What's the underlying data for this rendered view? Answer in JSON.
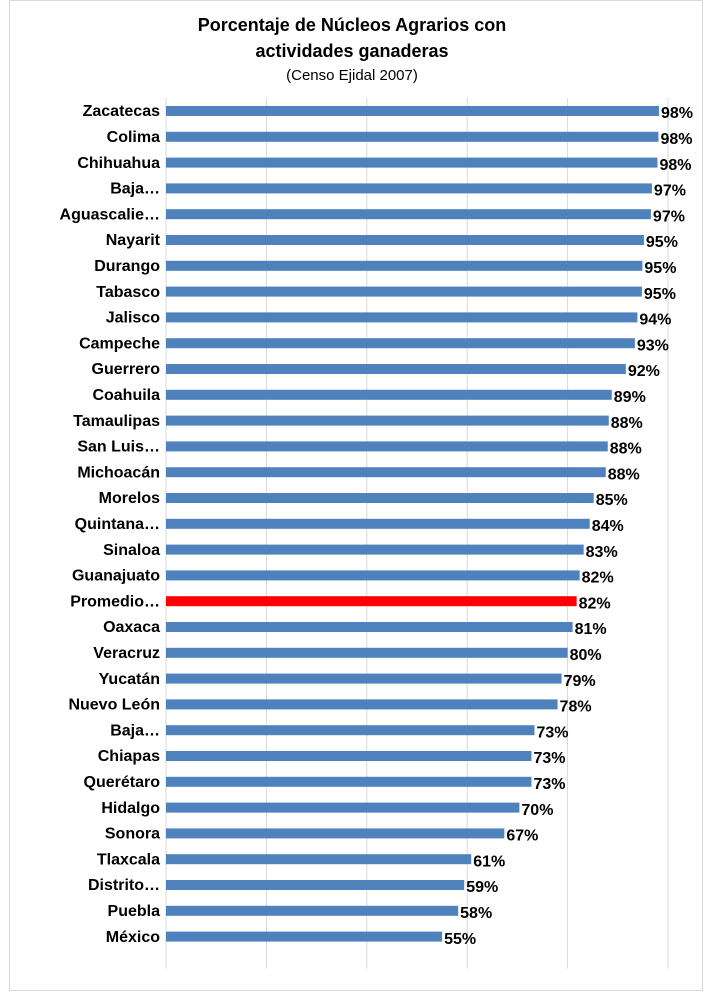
{
  "chart_data": {
    "type": "barh",
    "title": "Porcentaje de Núcleos Agrarios con actividades ganaderas",
    "subtitle": "(Censo Ejidal 2007)",
    "categories": [
      "Zacatecas",
      "Colima",
      "Chihuahua",
      "Baja…",
      "Aguascalie…",
      "Nayarit",
      "Durango",
      "Tabasco",
      "Jalisco",
      "Campeche",
      "Guerrero",
      "Coahuila",
      "Tamaulipas",
      "San Luis…",
      "Michoacán",
      "Morelos",
      "Quintana…",
      "Sinaloa",
      "Guanajuato",
      "Promedio…",
      "Oaxaca",
      "Veracruz",
      "Yucatán",
      "Nuevo León",
      "Baja…",
      "Chiapas",
      "Querétaro",
      "Hidalgo",
      "Sonora",
      "Tlaxcala",
      "Distrito…",
      "Puebla",
      "México"
    ],
    "values": [
      98.2,
      98.1,
      97.9,
      96.8,
      96.6,
      95.2,
      94.9,
      94.8,
      93.9,
      93.4,
      91.6,
      88.8,
      88.2,
      88.0,
      87.6,
      85.2,
      84.4,
      83.2,
      82.4,
      81.8,
      81.0,
      80.0,
      78.8,
      78.0,
      73.4,
      72.8,
      72.8,
      70.4,
      67.4,
      60.8,
      59.4,
      58.2,
      55.0
    ],
    "value_labels": [
      "98%",
      "98%",
      "98%",
      "97%",
      "97%",
      "95%",
      "95%",
      "95%",
      "94%",
      "93%",
      "92%",
      "89%",
      "88%",
      "88%",
      "88%",
      "85%",
      "84%",
      "83%",
      "82%",
      "82%",
      "81%",
      "80%",
      "79%",
      "78%",
      "73%",
      "73%",
      "73%",
      "70%",
      "67%",
      "61%",
      "59%",
      "58%",
      "55%"
    ],
    "colors": [
      "#4f81bd",
      "#4f81bd",
      "#4f81bd",
      "#4f81bd",
      "#4f81bd",
      "#4f81bd",
      "#4f81bd",
      "#4f81bd",
      "#4f81bd",
      "#4f81bd",
      "#4f81bd",
      "#4f81bd",
      "#4f81bd",
      "#4f81bd",
      "#4f81bd",
      "#4f81bd",
      "#4f81bd",
      "#4f81bd",
      "#4f81bd",
      "#ff0000",
      "#4f81bd",
      "#4f81bd",
      "#4f81bd",
      "#4f81bd",
      "#4f81bd",
      "#4f81bd",
      "#4f81bd",
      "#4f81bd",
      "#4f81bd",
      "#4f81bd",
      "#4f81bd",
      "#4f81bd",
      "#4f81bd"
    ],
    "xlim": [
      0,
      100
    ],
    "xticks": [
      0,
      20,
      40,
      60,
      80,
      100
    ],
    "tick_labels": false,
    "grid": true
  }
}
